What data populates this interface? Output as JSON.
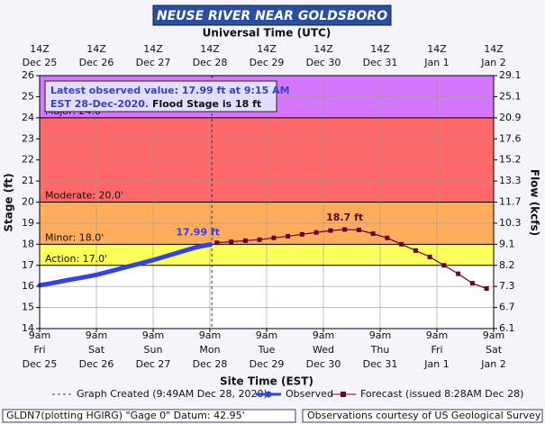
{
  "chart_data": {
    "type": "hydrograph",
    "title": "NEUSE RIVER NEAR GOLDSBORO",
    "top_axis_title": "Universal Time (UTC)",
    "xlabel": "Site Time (EST)",
    "ylabel": "Stage (ft)",
    "y2label": "Flow (kcfs)",
    "xlim": [
      "2020-12-25T09:00",
      "2021-01-02T09:00"
    ],
    "xticks": [
      {
        "value": "2020-12-25T09:00",
        "label": [
          "9am",
          "Fri",
          "Dec 25"
        ],
        "top_label": [
          "14Z",
          "Dec 25"
        ]
      },
      {
        "value": "2020-12-26T09:00",
        "label": [
          "9am",
          "Sat",
          "Dec 26"
        ],
        "top_label": [
          "14Z",
          "Dec 26"
        ]
      },
      {
        "value": "2020-12-27T09:00",
        "label": [
          "9am",
          "Sun",
          "Dec 27"
        ],
        "top_label": [
          "14Z",
          "Dec 27"
        ]
      },
      {
        "value": "2020-12-28T09:00",
        "label": [
          "9am",
          "Mon",
          "Dec 28"
        ],
        "top_label": [
          "14Z",
          "Dec 28"
        ]
      },
      {
        "value": "2020-12-29T09:00",
        "label": [
          "9am",
          "Tue",
          "Dec 29"
        ],
        "top_label": [
          "14Z",
          "Dec 29"
        ]
      },
      {
        "value": "2020-12-30T09:00",
        "label": [
          "9am",
          "Wed",
          "Dec 30"
        ],
        "top_label": [
          "14Z",
          "Dec 30"
        ]
      },
      {
        "value": "2020-12-31T09:00",
        "label": [
          "9am",
          "Thu",
          "Dec 31"
        ],
        "top_label": [
          "14Z",
          "Dec 31"
        ]
      },
      {
        "value": "2021-01-01T09:00",
        "label": [
          "9am",
          "Fri",
          "Jan 1"
        ],
        "top_label": [
          "14Z",
          "Jan 1"
        ]
      },
      {
        "value": "2021-01-02T09:00",
        "label": [
          "9am",
          "Sat",
          "Jan 2"
        ],
        "top_label": [
          "14Z",
          "Jan 2"
        ]
      }
    ],
    "ylim": [
      14,
      26
    ],
    "yticks": [
      14,
      15,
      16,
      17,
      18,
      19,
      20,
      21,
      22,
      23,
      24,
      25,
      26
    ],
    "y2lim": [
      6.1,
      29.1
    ],
    "y2ticks": [
      6.1,
      6.7,
      7.3,
      8.2,
      9.1,
      10.3,
      11.7,
      13.3,
      15.2,
      17.6,
      20.9,
      25.1,
      29.1
    ],
    "grid": true,
    "flood_categories": [
      {
        "label": "Action: 17.0'",
        "value": 17,
        "color": "#ffff33"
      },
      {
        "label": "Minor: 18.0'",
        "value": 18,
        "color": "#ff9933"
      },
      {
        "label": "Moderate: 20.0'",
        "value": 20,
        "color": "#ff4444"
      },
      {
        "label": "Major: 24.0'",
        "value": 24,
        "color": "#cc55ff"
      }
    ],
    "created": "2020-12-28T09:49",
    "created_label": "Graph Created (9:49AM Dec 28, 2020)",
    "note": [
      "Latest observed value: 17.99 ft at 9:15 AM",
      "EST 28-Dec-2020.",
      "Flood Stage is 18 ft"
    ],
    "series": [
      {
        "name": "Observed",
        "color": "#3344dd",
        "x": [
          "2020-12-25T09:00",
          "2020-12-25T15:00",
          "2020-12-25T21:00",
          "2020-12-26T03:00",
          "2020-12-26T09:00",
          "2020-12-26T15:00",
          "2020-12-26T21:00",
          "2020-12-27T03:00",
          "2020-12-27T09:00",
          "2020-12-27T15:00",
          "2020-12-27T21:00",
          "2020-12-28T03:00",
          "2020-12-28T09:15"
        ],
        "values": [
          16.05,
          16.17,
          16.3,
          16.42,
          16.55,
          16.72,
          16.9,
          17.07,
          17.25,
          17.45,
          17.65,
          17.85,
          17.99
        ],
        "value_labels": [
          null,
          null,
          null,
          null,
          null,
          null,
          null,
          null,
          null,
          null,
          null,
          null,
          "17.99 ft"
        ]
      },
      {
        "name": "Forecast (issued 8:28AM Dec 28)",
        "color": "#660033",
        "x": [
          "2020-12-28T12:00",
          "2020-12-28T18:00",
          "2020-12-29T00:00",
          "2020-12-29T06:00",
          "2020-12-29T12:00",
          "2020-12-29T18:00",
          "2020-12-30T00:00",
          "2020-12-30T06:00",
          "2020-12-30T12:00",
          "2020-12-30T18:00",
          "2020-12-31T00:00",
          "2020-12-31T06:00",
          "2020-12-31T12:00",
          "2020-12-31T18:00",
          "2021-01-01T00:00",
          "2021-01-01T06:00",
          "2021-01-01T12:00",
          "2021-01-01T18:00",
          "2021-01-02T00:00",
          "2021-01-02T06:00"
        ],
        "values": [
          18.07,
          18.12,
          18.17,
          18.22,
          18.3,
          18.38,
          18.47,
          18.56,
          18.65,
          18.7,
          18.68,
          18.5,
          18.3,
          18.0,
          17.7,
          17.4,
          17.0,
          16.6,
          16.15,
          15.9
        ],
        "value_labels": [
          null,
          null,
          null,
          null,
          null,
          null,
          null,
          null,
          null,
          "18.7 ft",
          null,
          null,
          null,
          null,
          null,
          null,
          null,
          null,
          null,
          null
        ]
      }
    ]
  },
  "footer": {
    "left": "GLDN7(plotting HGIRG) \"Gage 0\" Datum: 42.95'",
    "right": "Observations courtesy of US Geological Survey"
  }
}
